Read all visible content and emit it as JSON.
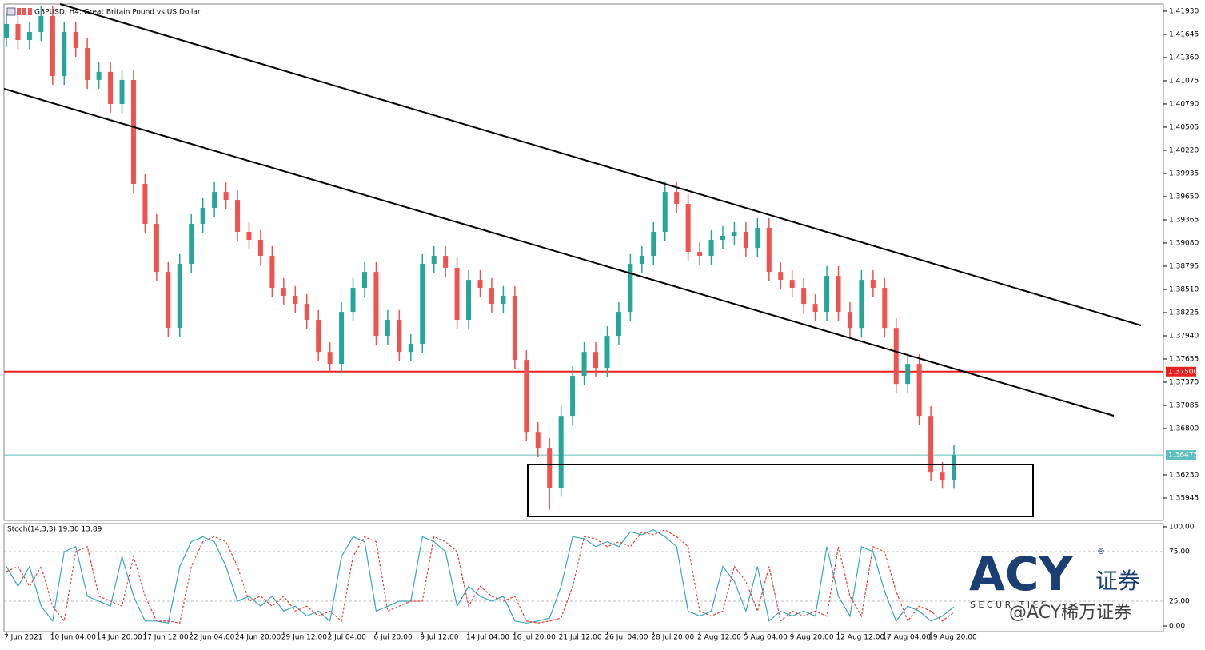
{
  "chart_data": {
    "type": "candlestick",
    "title": "GBPUSD, H4:  Great Britain Pound vs US Dollar",
    "up_color": "#26a69a",
    "down_color": "#ef5350",
    "x_labels": [
      "7 Jun 2021",
      "10 Jun 04:00",
      "14 Jun 20:00",
      "17 Jun 12:00",
      "22 Jun 04:00",
      "24 Jun 20:00",
      "29 Jun 12:00",
      "2 Jul 04:00",
      "6 Jul 20:00",
      "9 Jul 12:00",
      "14 Jul 04:00",
      "16 Jul 20:00",
      "21 Jul 12:00",
      "26 Jul 04:00",
      "28 Jul 20:00",
      "2 Aug 12:00",
      "5 Aug 04:00",
      "9 Aug 20:00",
      "12 Aug 12:00",
      "17 Aug 04:00",
      "19 Aug 20:00"
    ],
    "open": [
      1.416,
      1.41773,
      1.41576,
      1.41674,
      1.41871,
      1.41134,
      1.41674,
      1.41478,
      1.41085,
      1.41184,
      1.4079,
      1.41085,
      1.39807,
      1.39315,
      1.38725,
      1.38037,
      1.38824,
      1.39315,
      1.39512,
      1.39708,
      1.3961,
      1.39217,
      1.39119,
      1.38922,
      1.38529,
      1.38431,
      1.38332,
      1.38136,
      1.37742,
      1.37595,
      1.38234,
      1.38529,
      1.38725,
      1.37939,
      1.38136,
      1.37742,
      1.37841,
      1.38824,
      1.38922,
      1.38775,
      1.38136,
      1.38627,
      1.38529,
      1.38332,
      1.38431,
      1.37644,
      1.36759,
      1.36563,
      1.36071,
      1.36956,
      1.37448,
      1.37742,
      1.37546,
      1.37939,
      1.38234,
      1.38824,
      1.38922,
      1.39217,
      1.39708,
      1.39561,
      1.38971,
      1.38922,
      1.39119,
      1.39168,
      1.39217,
      1.3902,
      1.39266,
      1.38725,
      1.38627,
      1.38529,
      1.38332,
      1.38234,
      1.38676,
      1.38234,
      1.38037,
      1.38627,
      1.38529,
      1.38037,
      1.37349,
      1.37595,
      1.36956,
      1.36268,
      1.3617
    ],
    "high": [
      1.41893,
      1.41893,
      1.41794,
      1.41991,
      1.41991,
      1.41794,
      1.41794,
      1.41598,
      1.41304,
      1.41304,
      1.41205,
      1.41205,
      1.39927,
      1.39435,
      1.38845,
      1.38944,
      1.39435,
      1.39632,
      1.39828,
      1.39828,
      1.3973,
      1.39337,
      1.39239,
      1.39042,
      1.38649,
      1.38551,
      1.38452,
      1.38256,
      1.37862,
      1.38354,
      1.38649,
      1.38845,
      1.38845,
      1.38256,
      1.38256,
      1.37961,
      1.38944,
      1.39042,
      1.39042,
      1.38895,
      1.38747,
      1.38747,
      1.38649,
      1.38551,
      1.38551,
      1.37764,
      1.36879,
      1.36683,
      1.37076,
      1.37568,
      1.37862,
      1.37862,
      1.38059,
      1.38354,
      1.38944,
      1.39042,
      1.39337,
      1.39828,
      1.39828,
      1.39681,
      1.39091,
      1.39239,
      1.39288,
      1.39337,
      1.39337,
      1.39386,
      1.39386,
      1.38845,
      1.38747,
      1.38649,
      1.38452,
      1.38796,
      1.38796,
      1.38354,
      1.38747,
      1.38747,
      1.38649,
      1.38157,
      1.37715,
      1.37715,
      1.37076,
      1.36388,
      1.36595
    ],
    "low": [
      1.4149,
      1.41466,
      1.41466,
      1.41564,
      1.41024,
      1.41024,
      1.41368,
      1.40975,
      1.40975,
      1.4068,
      1.4068,
      1.39697,
      1.39205,
      1.38615,
      1.37927,
      1.37927,
      1.38714,
      1.39205,
      1.39402,
      1.395,
      1.39107,
      1.39009,
      1.38812,
      1.38419,
      1.38321,
      1.38222,
      1.38026,
      1.37632,
      1.37485,
      1.37485,
      1.38124,
      1.38419,
      1.37829,
      1.37829,
      1.37632,
      1.37632,
      1.37731,
      1.38714,
      1.38665,
      1.38026,
      1.38026,
      1.38419,
      1.38222,
      1.38222,
      1.37534,
      1.36649,
      1.36453,
      1.358,
      1.35961,
      1.36846,
      1.37338,
      1.37436,
      1.37436,
      1.37829,
      1.38124,
      1.38714,
      1.38812,
      1.39107,
      1.39451,
      1.38861,
      1.38812,
      1.38812,
      1.39009,
      1.39058,
      1.3891,
      1.3891,
      1.38615,
      1.38517,
      1.38419,
      1.38222,
      1.38124,
      1.38124,
      1.38124,
      1.37927,
      1.37927,
      1.38419,
      1.37927,
      1.37239,
      1.37239,
      1.36846,
      1.36158,
      1.3606,
      1.3606
    ],
    "close": [
      1.41773,
      1.41576,
      1.41674,
      1.41871,
      1.41134,
      1.41674,
      1.41478,
      1.41085,
      1.41184,
      1.4079,
      1.41085,
      1.39807,
      1.39315,
      1.38725,
      1.38037,
      1.38824,
      1.39315,
      1.39512,
      1.39708,
      1.3961,
      1.39217,
      1.39119,
      1.38922,
      1.38529,
      1.38431,
      1.38332,
      1.38136,
      1.37742,
      1.37595,
      1.38234,
      1.38529,
      1.38725,
      1.37939,
      1.38136,
      1.37742,
      1.37841,
      1.38824,
      1.38922,
      1.38775,
      1.38136,
      1.38627,
      1.38529,
      1.38332,
      1.38431,
      1.37644,
      1.36759,
      1.36563,
      1.36071,
      1.36956,
      1.37448,
      1.37742,
      1.37546,
      1.37939,
      1.38234,
      1.38824,
      1.38922,
      1.39217,
      1.39708,
      1.39561,
      1.38971,
      1.38922,
      1.39119,
      1.39168,
      1.39217,
      1.3902,
      1.39266,
      1.38725,
      1.38627,
      1.38529,
      1.38332,
      1.38234,
      1.38676,
      1.38234,
      1.38037,
      1.38627,
      1.38529,
      1.38037,
      1.37349,
      1.37595,
      1.36956,
      1.36268,
      1.3617,
      1.36475
    ],
    "ylim": [
      1.3567,
      1.42018
    ],
    "yticks": [
      {
        "value": 1.4193,
        "label": "1.41930"
      },
      {
        "value": 1.41645,
        "label": "1.41645"
      },
      {
        "value": 1.4136,
        "label": "1.41360"
      },
      {
        "value": 1.41075,
        "label": "1.41075"
      },
      {
        "value": 1.4079,
        "label": "1.40790"
      },
      {
        "value": 1.40505,
        "label": "1.40505"
      },
      {
        "value": 1.4022,
        "label": "1.40220"
      },
      {
        "value": 1.39935,
        "label": "1.39935"
      },
      {
        "value": 1.3965,
        "label": "1.39650"
      },
      {
        "value": 1.39365,
        "label": "1.39365"
      },
      {
        "value": 1.3908,
        "label": "1.39080"
      },
      {
        "value": 1.38795,
        "label": "1.38795"
      },
      {
        "value": 1.3851,
        "label": "1.38510"
      },
      {
        "value": 1.38225,
        "label": "1.38225"
      },
      {
        "value": 1.3794,
        "label": "1.37940"
      },
      {
        "value": 1.37655,
        "label": "1.37655"
      },
      {
        "value": 1.3737,
        "label": "1.37370"
      },
      {
        "value": 1.37085,
        "label": "1.37085"
      },
      {
        "value": 1.368,
        "label": "1.36800"
      },
      {
        "value": 1.3623,
        "label": "1.36230"
      },
      {
        "value": 1.35945,
        "label": "1.35945"
      }
    ],
    "levels": [
      {
        "value": 1.375,
        "label": "1.37500",
        "color": "#e8201f"
      },
      {
        "value": 1.36475,
        "label": "1.36475",
        "color": "#5fbfbf"
      }
    ],
    "indicator": {
      "label": "Stoch(14,3,3) 19.30 13.89",
      "ylim": [
        -5.6,
        103.2
      ],
      "yticks": [
        {
          "value": 100,
          "label": "100.00"
        },
        {
          "value": 75,
          "label": "75.00"
        },
        {
          "value": 25,
          "label": "25.00"
        },
        {
          "value": 0,
          "label": "0.00"
        }
      ],
      "series": [
        {
          "color": "#3aa9b4",
          "values": [
            60,
            40,
            60,
            20,
            5,
            75,
            80,
            30,
            25,
            20,
            70,
            30,
            5,
            5,
            3,
            60,
            85,
            90,
            85,
            60,
            25,
            30,
            20,
            30,
            15,
            20,
            10,
            15,
            5,
            70,
            90,
            85,
            15,
            20,
            25,
            25,
            90,
            85,
            75,
            20,
            40,
            30,
            25,
            30,
            5,
            3,
            5,
            8,
            40,
            90,
            88,
            80,
            85,
            80,
            95,
            92,
            97,
            90,
            80,
            15,
            10,
            15,
            60,
            45,
            15,
            60,
            5,
            15,
            10,
            15,
            10,
            80,
            30,
            10,
            80,
            75,
            35,
            5,
            20,
            15,
            5,
            10,
            19.3
          ]
        },
        {
          "color": "#e0403a",
          "values": [
            55,
            60,
            40,
            60,
            20,
            5,
            75,
            80,
            30,
            25,
            20,
            70,
            30,
            5,
            5,
            3,
            60,
            85,
            90,
            85,
            60,
            25,
            30,
            20,
            30,
            15,
            20,
            10,
            15,
            5,
            70,
            90,
            85,
            15,
            20,
            25,
            25,
            90,
            85,
            75,
            20,
            40,
            30,
            25,
            30,
            5,
            3,
            5,
            8,
            40,
            90,
            88,
            80,
            85,
            80,
            95,
            92,
            97,
            90,
            80,
            15,
            10,
            15,
            60,
            45,
            15,
            60,
            5,
            15,
            10,
            15,
            10,
            80,
            30,
            10,
            80,
            75,
            35,
            5,
            20,
            15,
            5,
            13.89
          ]
        }
      ]
    },
    "watermark": {
      "logo": "ACY",
      "registered": "®",
      "cn": "证券",
      "sub": "S E C U R I T I E S",
      "handle": "@ACY稀万证券"
    }
  }
}
